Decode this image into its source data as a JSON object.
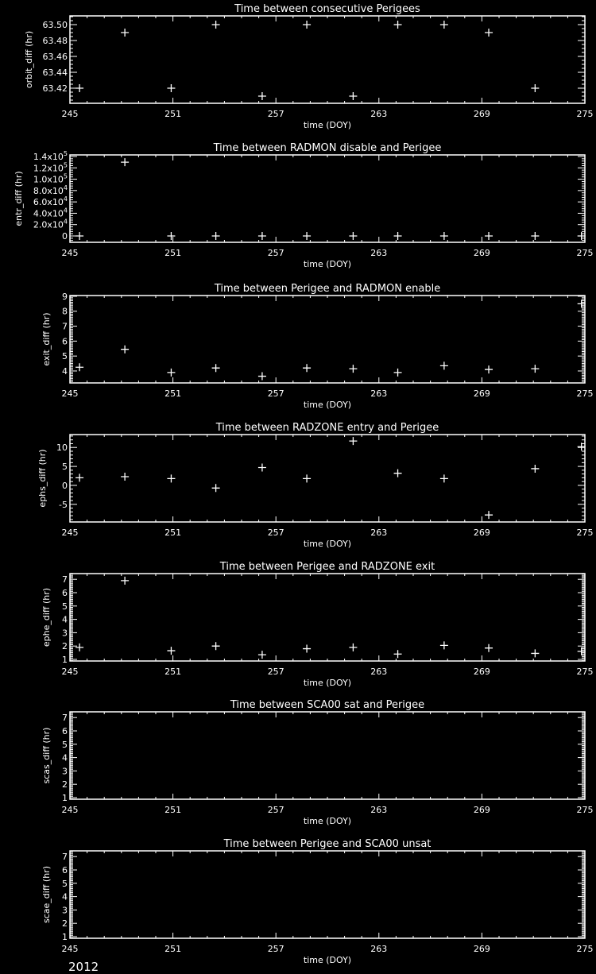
{
  "footer_year": "2012",
  "chart_data": [
    {
      "type": "scatter",
      "title": "Time between consecutive Perigees",
      "xlabel": "time (DOY)",
      "ylabel": "orbit_diff (hr)",
      "xlim": [
        245,
        275
      ],
      "xticks": [
        245,
        251,
        257,
        263,
        269,
        275
      ],
      "ylim": [
        63.401,
        63.511
      ],
      "yticks": [
        63.42,
        63.44,
        63.46,
        63.48,
        63.5
      ],
      "ytick_labels": [
        "63.42",
        "63.44",
        "63.46",
        "63.48",
        "63.50"
      ],
      "x": [
        245.56,
        248.2,
        250.9,
        253.5,
        256.2,
        258.8,
        261.5,
        264.1,
        266.8,
        269.4,
        272.1
      ],
      "y": [
        63.42,
        63.49,
        63.42,
        63.5,
        63.41,
        63.5,
        63.41,
        63.5,
        63.5,
        63.49,
        63.42
      ]
    },
    {
      "type": "scatter",
      "title": "Time between RADMON disable and Perigee",
      "xlabel": "time (DOY)",
      "ylabel": "entr_diff (hr)",
      "xlim": [
        245,
        275
      ],
      "xticks": [
        245,
        251,
        257,
        263,
        269,
        275
      ],
      "ylim": [
        -11200,
        142800
      ],
      "yticks": [
        0,
        20000,
        40000,
        60000,
        80000,
        100000,
        120000,
        140000
      ],
      "ytick_labels": [
        "0",
        "2.0x10^4",
        "4.0x10^4",
        "6.0x10^4",
        "8.0x10^4",
        "1.0x10^5",
        "1.2x10^5",
        "1.4x10^5"
      ],
      "x": [
        245.56,
        248.2,
        250.9,
        253.5,
        256.2,
        258.8,
        261.5,
        264.1,
        266.8,
        269.4,
        272.1,
        274.8
      ],
      "y": [
        0,
        130000,
        0,
        0,
        0,
        0,
        0,
        0,
        0,
        0,
        0,
        0
      ]
    },
    {
      "type": "scatter",
      "title": "Time between Perigee and RADMON enable",
      "xlabel": "time (DOY)",
      "ylabel": "exit_diff (hr)",
      "xlim": [
        245,
        275
      ],
      "xticks": [
        245,
        251,
        257,
        263,
        269,
        275
      ],
      "ylim": [
        3.2,
        9.05
      ],
      "yticks": [
        4,
        5,
        6,
        7,
        8,
        9
      ],
      "ytick_labels": [
        "4",
        "5",
        "6",
        "7",
        "8",
        "9"
      ],
      "x": [
        245.56,
        248.2,
        250.9,
        253.5,
        256.2,
        258.8,
        261.5,
        264.1,
        266.8,
        269.4,
        272.1,
        274.8
      ],
      "y": [
        4.25,
        5.45,
        3.9,
        4.2,
        3.65,
        4.2,
        4.15,
        3.9,
        4.35,
        4.1,
        4.15,
        8.5
      ]
    },
    {
      "type": "scatter",
      "title": "Time between RADZONE entry and Perigee",
      "xlabel": "time (DOY)",
      "ylabel": "ephs_diff (hr)",
      "xlim": [
        245,
        275
      ],
      "xticks": [
        245,
        251,
        257,
        263,
        269,
        275
      ],
      "ylim": [
        -9.65,
        13.4
      ],
      "yticks": [
        -5,
        0,
        5,
        10
      ],
      "ytick_labels": [
        "-5",
        "0",
        "5",
        "10"
      ],
      "x": [
        245.56,
        248.2,
        250.9,
        253.5,
        256.2,
        258.8,
        261.5,
        264.1,
        266.8,
        269.4,
        272.1,
        274.8
      ],
      "y": [
        2.0,
        2.3,
        1.8,
        -0.7,
        4.7,
        1.8,
        11.7,
        3.2,
        1.8,
        -7.8,
        4.4,
        10.2
      ]
    },
    {
      "type": "scatter",
      "title": "Time between Perigee and RADZONE exit",
      "xlabel": "time (DOY)",
      "ylabel": "ephe_diff (hr)",
      "xlim": [
        245,
        275
      ],
      "xticks": [
        245,
        251,
        257,
        263,
        269,
        275
      ],
      "ylim": [
        0.88,
        7.43
      ],
      "yticks": [
        1,
        2,
        3,
        4,
        5,
        6,
        7
      ],
      "ytick_labels": [
        "1",
        "2",
        "3",
        "4",
        "5",
        "6",
        "7"
      ],
      "x": [
        245.56,
        248.2,
        250.9,
        253.5,
        256.2,
        258.8,
        261.5,
        264.1,
        266.8,
        269.4,
        272.1,
        274.8
      ],
      "y": [
        1.9,
        6.9,
        1.65,
        2.0,
        1.35,
        1.8,
        1.9,
        1.4,
        2.05,
        1.85,
        1.45,
        1.6
      ]
    },
    {
      "type": "scatter",
      "title": "Time between SCA00 sat and Perigee",
      "xlabel": "time (DOY)",
      "ylabel": "scas_diff (hr)",
      "xlim": [
        245,
        275
      ],
      "xticks": [
        245,
        251,
        257,
        263,
        269,
        275
      ],
      "ylim": [
        0.88,
        7.43
      ],
      "yticks": [
        1,
        2,
        3,
        4,
        5,
        6,
        7
      ],
      "ytick_labels": [
        "1",
        "2",
        "3",
        "4",
        "5",
        "6",
        "7"
      ],
      "x": [],
      "y": []
    },
    {
      "type": "scatter",
      "title": "Time between Perigee and SCA00 unsat",
      "xlabel": "time (DOY)",
      "ylabel": "scae_diff (hr)",
      "xlim": [
        245,
        275
      ],
      "xticks": [
        245,
        251,
        257,
        263,
        269,
        275
      ],
      "ylim": [
        0.88,
        7.43
      ],
      "yticks": [
        1,
        2,
        3,
        4,
        5,
        6,
        7
      ],
      "ytick_labels": [
        "1",
        "2",
        "3",
        "4",
        "5",
        "6",
        "7"
      ],
      "x": [],
      "y": []
    }
  ],
  "colors": {
    "background": "#000000",
    "foreground": "#ffffff"
  }
}
